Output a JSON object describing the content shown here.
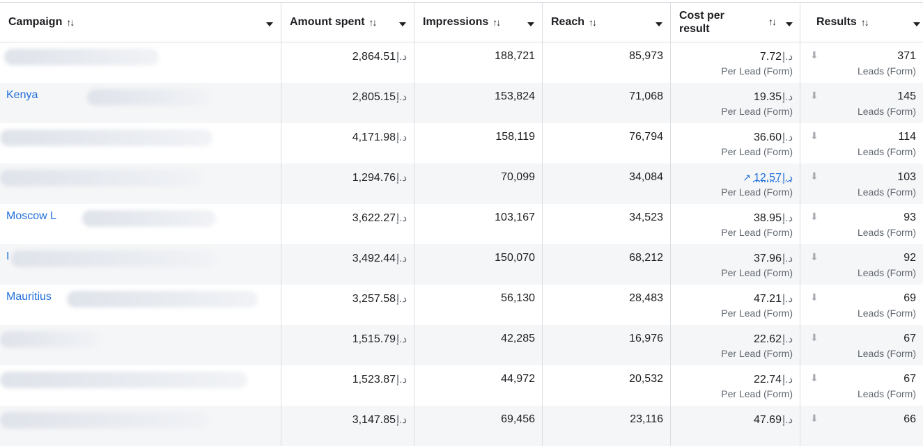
{
  "headers": {
    "campaign": "Campaign",
    "amount_spent": "Amount spent",
    "impressions": "Impressions",
    "reach": "Reach",
    "cost_per_result_line1": "Cost per",
    "cost_per_result_line2": "result",
    "results": "Results",
    "sort_glyph": "↑↓"
  },
  "currency": "د.إ",
  "icons": {
    "sort": "sort-arrows-icon",
    "caret": "caret-down-icon",
    "download": "download-icon",
    "trend": "trend-up-icon"
  },
  "rows": [
    {
      "campaign": "",
      "amount": "2,864.51",
      "impressions": "188,721",
      "reach": "85,973",
      "cost": "7.72",
      "cost_sub": "Per Lead (Form)",
      "results": "371",
      "results_sub": "Leads (Form)"
    },
    {
      "campaign": "Kenya",
      "amount": "2,805.15",
      "impressions": "153,824",
      "reach": "71,068",
      "cost": "19.35",
      "cost_sub": "Per Lead (Form)",
      "results": "145",
      "results_sub": "Leads (Form)"
    },
    {
      "campaign": "",
      "amount": "4,171.98",
      "impressions": "158,119",
      "reach": "76,794",
      "cost": "36.60",
      "cost_sub": "Per Lead (Form)",
      "results": "114",
      "results_sub": "Leads (Form)"
    },
    {
      "campaign": "",
      "amount": "1,294.76",
      "impressions": "70,099",
      "reach": "34,084",
      "cost": "12.57",
      "cost_sub": "Per Lead (Form)",
      "results": "103",
      "results_sub": "Leads (Form)",
      "trend": true
    },
    {
      "campaign": "Moscow L",
      "amount": "3,622.27",
      "impressions": "103,167",
      "reach": "34,523",
      "cost": "38.95",
      "cost_sub": "Per Lead (Form)",
      "results": "93",
      "results_sub": "Leads (Form)"
    },
    {
      "campaign": "I",
      "amount": "3,492.44",
      "impressions": "150,070",
      "reach": "68,212",
      "cost": "37.96",
      "cost_sub": "Per Lead (Form)",
      "results": "92",
      "results_sub": "Leads (Form)"
    },
    {
      "campaign": "Mauritius",
      "amount": "3,257.58",
      "impressions": "56,130",
      "reach": "28,483",
      "cost": "47.21",
      "cost_sub": "Per Lead (Form)",
      "results": "69",
      "results_sub": "Leads (Form)"
    },
    {
      "campaign": "",
      "amount": "1,515.79",
      "impressions": "42,285",
      "reach": "16,976",
      "cost": "22.62",
      "cost_sub": "Per Lead (Form)",
      "results": "67",
      "results_sub": "Leads (Form)"
    },
    {
      "campaign": "",
      "amount": "1,523.87",
      "impressions": "44,972",
      "reach": "20,532",
      "cost": "22.74",
      "cost_sub": "Per Lead (Form)",
      "results": "67",
      "results_sub": "Leads (Form)"
    },
    {
      "campaign": "",
      "amount": "3,147.85",
      "impressions": "69,456",
      "reach": "23,116",
      "cost": "47.69",
      "cost_sub": "",
      "results": "66",
      "results_sub": ""
    }
  ]
}
